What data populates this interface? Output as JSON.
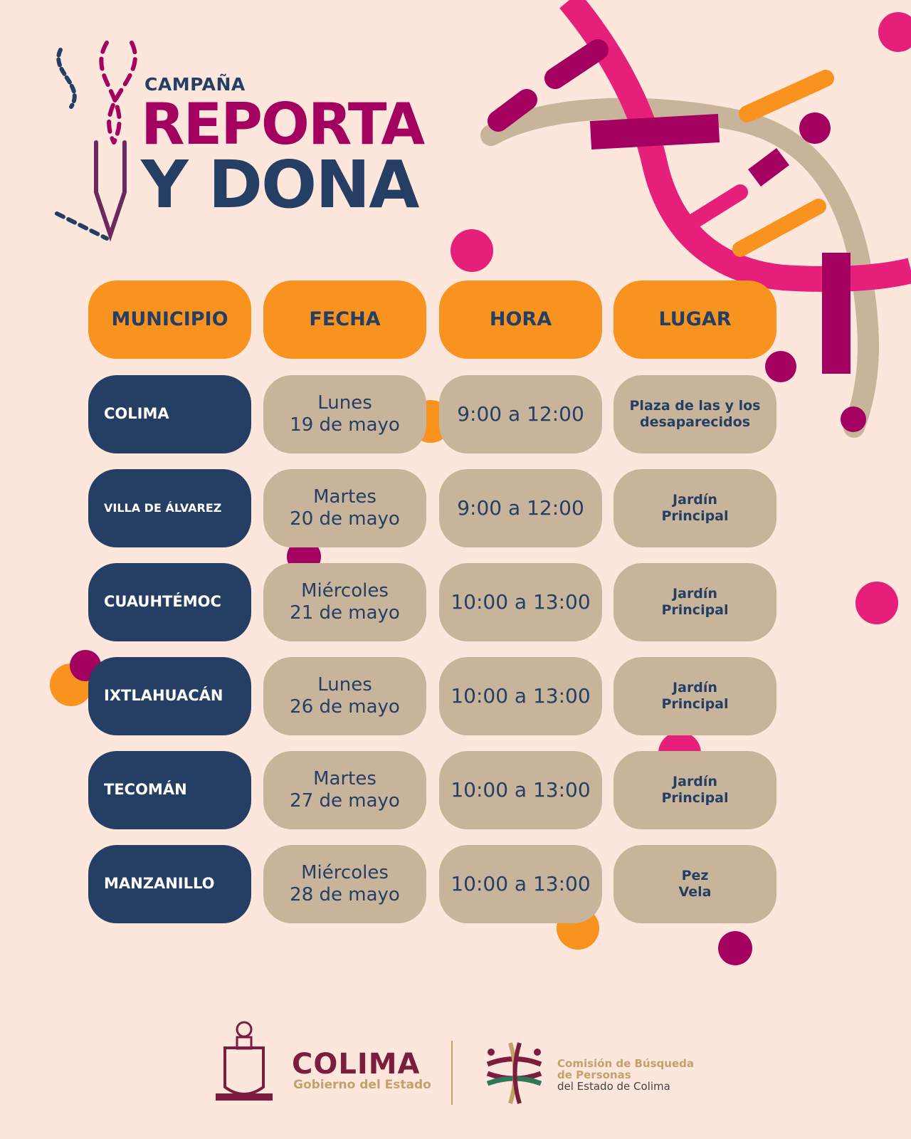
{
  "header": {
    "campaign": "CAMPAÑA",
    "title_line1": "REPORTA",
    "title_line2": "Y DONA"
  },
  "colors": {
    "background": "#fde6dc",
    "magenta": "#a3005f",
    "pink": "#e6207a",
    "navy": "#243f63",
    "orange": "#f7931e",
    "tan": "#c8b49a"
  },
  "table": {
    "headers": [
      "MUNICIPIO",
      "FECHA",
      "HORA",
      "LUGAR"
    ],
    "rows": [
      {
        "municipio": "COLIMA",
        "dia": "Lunes",
        "fecha": "19 de mayo",
        "hora": "9:00 a 12:00",
        "lugar": [
          "Plaza de las y los",
          "desaparecidos"
        ]
      },
      {
        "municipio": "VILLA DE ÁLVAREZ",
        "dia": "Martes",
        "fecha": "20 de mayo",
        "hora": "9:00 a 12:00",
        "lugar": [
          "Jardín",
          "Principal"
        ]
      },
      {
        "municipio": "CUAUHTÉMOC",
        "dia": "Miércoles",
        "fecha": "21 de mayo",
        "hora": "10:00 a 13:00",
        "lugar": [
          "Jardín",
          "Principal"
        ]
      },
      {
        "municipio": "IXTLAHUACÁN",
        "dia": "Lunes",
        "fecha": "26 de mayo",
        "hora": "10:00 a 13:00",
        "lugar": [
          "Jardín",
          "Principal"
        ]
      },
      {
        "municipio": "TECOMÁN",
        "dia": "Martes",
        "fecha": "27 de mayo",
        "hora": "10:00 a 13:00",
        "lugar": [
          "Jardín",
          "Principal"
        ]
      },
      {
        "municipio": "MANZANILLO",
        "dia": "Miércoles",
        "fecha": "28 de mayo",
        "hora": "10:00 a 13:00",
        "lugar": [
          "Pez",
          "Vela"
        ]
      }
    ]
  },
  "footer": {
    "colima": "COLIMA",
    "gobierno": "Gobierno del Estado",
    "comision": [
      "Comisión de Búsqueda",
      "de Personas",
      "del Estado de Colima"
    ]
  }
}
